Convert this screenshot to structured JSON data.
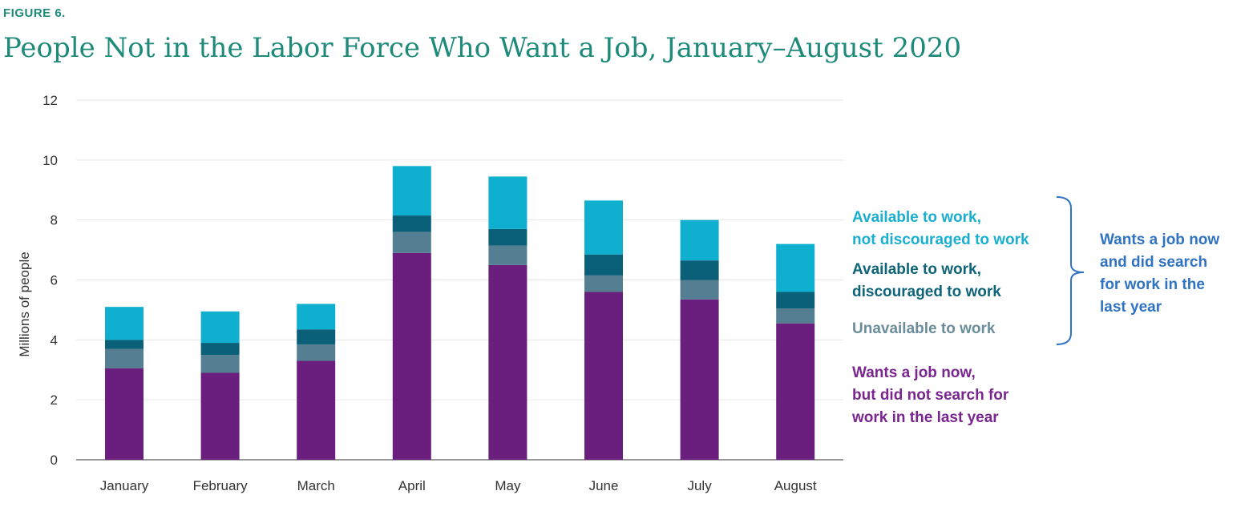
{
  "figure_label": "FIGURE 6.",
  "chart_data": {
    "type": "bar",
    "stacked": true,
    "title": "People Not in the Labor Force Who Want a Job, January–August 2020",
    "ylabel": "Millions of people",
    "xlabel": "",
    "ylim": [
      0,
      12
    ],
    "yticks": [
      0,
      2,
      4,
      6,
      8,
      10,
      12
    ],
    "grid": true,
    "legend_position": "right",
    "categories": [
      "January",
      "February",
      "March",
      "April",
      "May",
      "June",
      "July",
      "August"
    ],
    "series": [
      {
        "name": "Wants a job now, but did not search for work in the last year",
        "color": "#6a1f7f",
        "values": [
          3.05,
          2.9,
          3.3,
          6.9,
          6.5,
          5.6,
          5.35,
          4.55
        ]
      },
      {
        "name": "Unavailable to work",
        "color": "#547e92",
        "values": [
          0.65,
          0.6,
          0.55,
          0.7,
          0.65,
          0.55,
          0.65,
          0.5
        ]
      },
      {
        "name": "Available to work, discouraged to work",
        "color": "#0a5f79",
        "values": [
          0.3,
          0.4,
          0.5,
          0.55,
          0.55,
          0.7,
          0.65,
          0.55
        ]
      },
      {
        "name": "Available to work, not discouraged to work",
        "color": "#0fb0cf",
        "values": [
          1.1,
          1.05,
          0.85,
          1.65,
          1.75,
          1.8,
          1.35,
          1.6
        ]
      }
    ],
    "legend": [
      {
        "lines": [
          "Available to work,",
          "not discouraged to work"
        ],
        "color": "#1aaed0"
      },
      {
        "lines": [
          "Available to work,",
          "discouraged to work"
        ],
        "color": "#0e6478"
      },
      {
        "lines": [
          "Unavailable to work"
        ],
        "color": "#6b8c9a"
      },
      {
        "lines": [
          "Wants a job now,",
          "but did not search for",
          "work in the last year"
        ],
        "color": "#7a2590"
      }
    ],
    "bracket_label": {
      "lines": [
        "Wants a job now",
        "and did search",
        "for work in the",
        "last year"
      ],
      "color": "#2f73c2"
    }
  }
}
